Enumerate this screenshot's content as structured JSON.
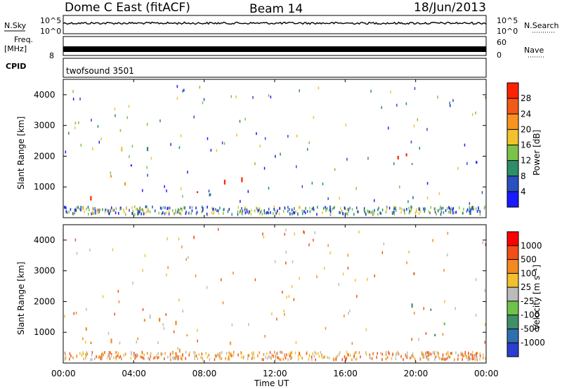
{
  "header": {
    "title": "Dome C East (fitACF)",
    "beam": "Beam 14",
    "date": "18/Jun/2013"
  },
  "noise_panel": {
    "left_label": "N.Sky",
    "right_label": "N.Search",
    "left_ticks": [
      "10^5",
      "10^0"
    ],
    "right_ticks": [
      "10^5",
      "10^0"
    ]
  },
  "freq_panel": {
    "left_label_1": "Freq.",
    "left_label_2": "[MHz]",
    "left_ticks": [
      "",
      "8"
    ],
    "right_label": "Nave",
    "right_ticks": [
      "60",
      "0"
    ]
  },
  "cpid_panel": {
    "label": "CPID",
    "text": "twofsound 3501"
  },
  "time_axis": {
    "ticks": [
      "00:00",
      "04:00",
      "08:00",
      "12:00",
      "16:00",
      "20:00",
      "00:00"
    ],
    "label": "Time UT"
  },
  "chart_data": [
    {
      "type": "heatmap",
      "name": "power",
      "ylabel": "Slant Range [km]",
      "yticks": [
        "1000",
        "2000",
        "3000",
        "4000"
      ],
      "ylim": [
        0,
        4500
      ],
      "xlim": [
        0,
        24
      ],
      "colorbar": {
        "label": "Power [dB]",
        "ticks": [
          "4",
          "8",
          "12",
          "16",
          "20",
          "24",
          "28"
        ],
        "colors": [
          "#1a1aff",
          "#2a4fc0",
          "#2e8d6a",
          "#7cc34a",
          "#f2c12e",
          "#f7931e",
          "#f25a18",
          "#ff2200"
        ]
      },
      "regions": [
        {
          "t0": 0.3,
          "t1": 5.0,
          "r0": 650,
          "r1": 1700,
          "level": "high"
        },
        {
          "t0": 5.0,
          "t1": 10.2,
          "r0": 550,
          "r1": 1500,
          "level": "high"
        },
        {
          "t0": 10.2,
          "t1": 11.2,
          "r0": 800,
          "r1": 1300,
          "level": "medium"
        },
        {
          "t0": 1.5,
          "t1": 6.5,
          "r0": 1700,
          "r1": 2600,
          "level": "mixed"
        },
        {
          "t0": 18.7,
          "t1": 23.5,
          "r0": 900,
          "r1": 2100,
          "level": "medium"
        }
      ]
    },
    {
      "type": "heatmap",
      "name": "velocity",
      "ylabel": "Slant Range [km]",
      "yticks": [
        "1000",
        "2000",
        "3000",
        "4000"
      ],
      "ylim": [
        0,
        4500
      ],
      "xlim": [
        0,
        24
      ],
      "colorbar": {
        "label": "Velocity [m s⁻¹]",
        "ticks": [
          "1000",
          "500",
          "100",
          "25",
          "-25",
          "-100",
          "-500",
          "-1000"
        ],
        "colors": [
          "#2a3fcf",
          "#2f6fae",
          "#3f8f6a",
          "#6fc24a",
          "#bbbbbb",
          "#f2c02e",
          "#f28a1e",
          "#f24e18",
          "#ff0000"
        ]
      },
      "regions": [
        {
          "t0": 0.3,
          "t1": 10.8,
          "r0": 450,
          "r1": 1750,
          "level": "orange"
        },
        {
          "t0": 3.5,
          "t1": 5.8,
          "r0": 1500,
          "r1": 2200,
          "level": "gray"
        },
        {
          "t0": 18.5,
          "t1": 23.5,
          "r0": 800,
          "r1": 2100,
          "level": "green"
        }
      ]
    }
  ]
}
